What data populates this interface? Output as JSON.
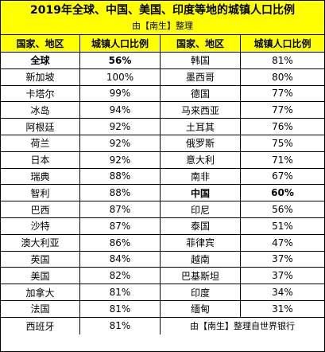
{
  "title": "2019年全球、中国、美国、印度等地的城镇人口比例",
  "subtitle": "由【南生】整理",
  "headers": [
    "国家、地区",
    "城镇人口比例",
    "国家、地区",
    "城镇人口比例"
  ],
  "rows": [
    {
      "c1": "全球",
      "v1": "56%",
      "c2": "韩国",
      "v2": "81%"
    },
    {
      "c1": "新加坡",
      "v1": "100%",
      "c2": "墨西哥",
      "v2": "80%"
    },
    {
      "c1": "卡塔尔",
      "v1": "99%",
      "c2": "德国",
      "v2": "77%"
    },
    {
      "c1": "冰岛",
      "v1": "94%",
      "c2": "马来西亚",
      "v2": "77%"
    },
    {
      "c1": "阿根廷",
      "v1": "92%",
      "c2": "土耳其",
      "v2": "76%"
    },
    {
      "c1": "荷兰",
      "v1": "92%",
      "c2": "俄罗斯",
      "v2": "75%"
    },
    {
      "c1": "日本",
      "v1": "92%",
      "c2": "意大利",
      "v2": "71%"
    },
    {
      "c1": "瑞典",
      "v1": "88%",
      "c2": "南非",
      "v2": "67%"
    },
    {
      "c1": "智利",
      "v1": "88%",
      "c2": "中国",
      "v2": "60%"
    },
    {
      "c1": "巴西",
      "v1": "87%",
      "c2": "印尼",
      "v2": "56%"
    },
    {
      "c1": "沙特",
      "v1": "87%",
      "c2": "泰国",
      "v2": "51%"
    },
    {
      "c1": "澳大利亚",
      "v1": "86%",
      "c2": "菲律宾",
      "v2": "47%"
    },
    {
      "c1": "英国",
      "v1": "84%",
      "c2": "越南",
      "v2": "37%"
    },
    {
      "c1": "美国",
      "v1": "82%",
      "c2": "巴基斯坦",
      "v2": "37%"
    },
    {
      "c1": "加拿大",
      "v1": "81%",
      "c2": "印度",
      "v2": "34%"
    },
    {
      "c1": "法国",
      "v1": "81%",
      "c2": "缅甸",
      "v2": "31%"
    },
    {
      "c1": "西班牙",
      "v1": "81%",
      "c2": "",
      "v2": ""
    }
  ],
  "source_note": "由【南生】整理自世界银行",
  "colors": {
    "header_bg": "#ffff00",
    "border": "#000000",
    "text": "#000000"
  }
}
